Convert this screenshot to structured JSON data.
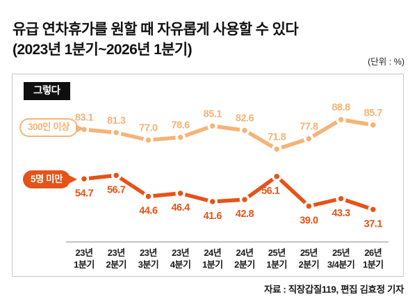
{
  "header": {
    "title_line1": "유급 연차휴가를 원할 때 자유롭게 사용할 수 있다",
    "title_line2": "(2023년 1분기~2026년 1분기)",
    "unit": "(단위 : %)"
  },
  "legend": {
    "label": "그렇다"
  },
  "source": "자료 : 직장갑질119, 편집 김효정 기자",
  "colors": {
    "series_300_plus": "#f6b376",
    "series_under_5": "#e65317",
    "legend_bg": "#0f0f0f",
    "panel_border": "#c6c6c6",
    "axis_line": "#8a8a8a",
    "text": "#111111"
  },
  "chart_data": {
    "type": "line",
    "title": "유급 연차휴가를 원할 때 자유롭게 사용할 수 있다 (2023년 1분기~2026년 1분기)",
    "unit": "%",
    "legend": "그렇다",
    "legend_position": "top-left",
    "grid": false,
    "y_axis_visible": false,
    "x_axis_line": true,
    "ylim": [
      0,
      100
    ],
    "categories": [
      "23년 1분기",
      "23년 2분기",
      "23년 3분기",
      "23년 4분기",
      "24년 1분기",
      "24년 2분기",
      "25년 1분기",
      "25년 2분기",
      "25년 3/4분기",
      "26년 1분기"
    ],
    "categories_line1": [
      "23년",
      "23년",
      "23년",
      "23년",
      "24년",
      "24년",
      "25년",
      "25년",
      "25년",
      "26년"
    ],
    "categories_line2": [
      "1분기",
      "2분기",
      "3분기",
      "4분기",
      "1분기",
      "2분기",
      "1분기",
      "2분기",
      "3/4분기",
      "1분기"
    ],
    "series": [
      {
        "name": "300인 이상",
        "color": "#f6b376",
        "label_position": "above",
        "values": [
          83.1,
          81.3,
          77.0,
          78.6,
          85.1,
          82.6,
          71.8,
          77.8,
          88.8,
          85.7
        ]
      },
      {
        "name": "5명 미만",
        "color": "#e65317",
        "label_position": "below",
        "values": [
          54.7,
          56.7,
          44.6,
          46.4,
          41.6,
          42.8,
          56.1,
          39.0,
          43.3,
          37.1
        ]
      }
    ]
  }
}
